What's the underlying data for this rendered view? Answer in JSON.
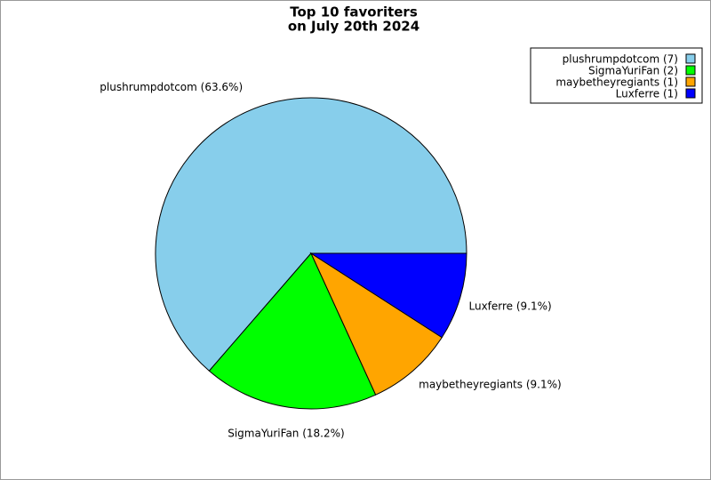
{
  "chart_data": {
    "type": "pie",
    "title": [
      "Top 10 favoriters",
      "on July 20th 2024"
    ],
    "categories": [
      "plushrumpdotcom (7)",
      "SigmaYuriFan (2)",
      "maybetheyregiants (1)",
      "Luxferre (1)"
    ],
    "values": [
      7,
      2,
      1,
      1
    ],
    "value_labels": [
      "plushrumpdotcom (63.6%)",
      "SigmaYuriFan (18.2%)",
      "maybetheyregiants (9.1%)",
      "Luxferre (9.1%)"
    ],
    "colors": [
      "#87ceeb",
      "#00ff00",
      "#ffa500",
      "#0000ff"
    ],
    "legend": "upper right"
  }
}
